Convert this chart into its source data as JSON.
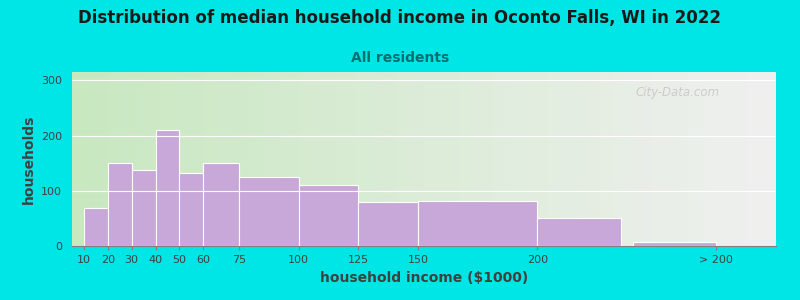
{
  "title": "Distribution of median household income in Oconto Falls, WI in 2022",
  "subtitle": "All residents",
  "xlabel": "household income ($1000)",
  "ylabel": "households",
  "bar_lefts": [
    10,
    20,
    30,
    40,
    50,
    60,
    75,
    100,
    125,
    150,
    200,
    240
  ],
  "bar_widths": [
    10,
    10,
    10,
    10,
    10,
    15,
    25,
    25,
    25,
    50,
    35,
    35
  ],
  "bar_values": [
    68,
    150,
    138,
    210,
    133,
    150,
    125,
    110,
    80,
    82,
    50,
    8
  ],
  "tick_positions": [
    10,
    20,
    30,
    40,
    50,
    60,
    75,
    100,
    125,
    150,
    200,
    275
  ],
  "tick_labels": [
    "10",
    "20",
    "30",
    "40",
    "50",
    "60",
    "75",
    "100",
    "125",
    "150",
    "200",
    "> 200"
  ],
  "bar_color": "#c8a8d8",
  "bar_edge_color": "#ffffff",
  "ylim": [
    0,
    315
  ],
  "xlim": [
    5,
    300
  ],
  "yticks": [
    0,
    100,
    200,
    300
  ],
  "background_outer": "#00e5e5",
  "background_inner_left": "#c8e8c0",
  "background_inner_right": "#f0f0f0",
  "title_fontsize": 12,
  "subtitle_fontsize": 10,
  "subtitle_color": "#007070",
  "axis_label_fontsize": 10,
  "watermark_text": "City-Data.com",
  "watermark_color": "#c0c0c0"
}
